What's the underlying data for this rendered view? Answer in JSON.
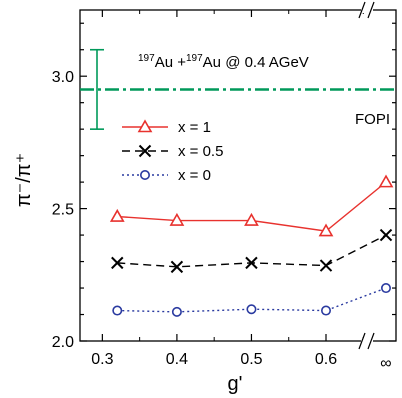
{
  "chart_data": {
    "type": "line",
    "xlabel": "g'",
    "ylabel": "π⁻/π⁺",
    "x": [
      "0.3",
      "0.4",
      "0.5",
      "0.6",
      "∞"
    ],
    "ylim": [
      2.0,
      3.25
    ],
    "yticks": [
      "2.0",
      "2.5",
      "3.0"
    ],
    "annotation": {
      "au1_mass": "197",
      "au1_symbol": "Au",
      "plus": " +",
      "au2_mass": "197",
      "au2_symbol": "Au",
      "rest": " @ 0.4 AGeV"
    },
    "reference": {
      "label": "FOPI",
      "value": 2.95,
      "err_low": 2.8,
      "err_high": 3.1,
      "color": "#00995a"
    },
    "series": [
      {
        "name": "x = 1",
        "marker": "triangle",
        "color": "#e8322e",
        "dash": "",
        "x": [
          0.32,
          0.4,
          0.5,
          0.6,
          "∞"
        ],
        "values": [
          2.47,
          2.455,
          2.455,
          2.415,
          2.6
        ]
      },
      {
        "name": "x = 0.5",
        "marker": "cross",
        "color": "#000000",
        "dash": "8,5",
        "x": [
          0.32,
          0.4,
          0.5,
          0.6,
          "∞"
        ],
        "values": [
          2.295,
          2.28,
          2.295,
          2.285,
          2.4
        ]
      },
      {
        "name": "x = 0",
        "marker": "circle",
        "color": "#2a3aa0",
        "dash": "2,3",
        "x": [
          0.32,
          0.4,
          0.5,
          0.6,
          "∞"
        ],
        "values": [
          2.115,
          2.11,
          2.12,
          2.115,
          2.2
        ]
      }
    ]
  }
}
